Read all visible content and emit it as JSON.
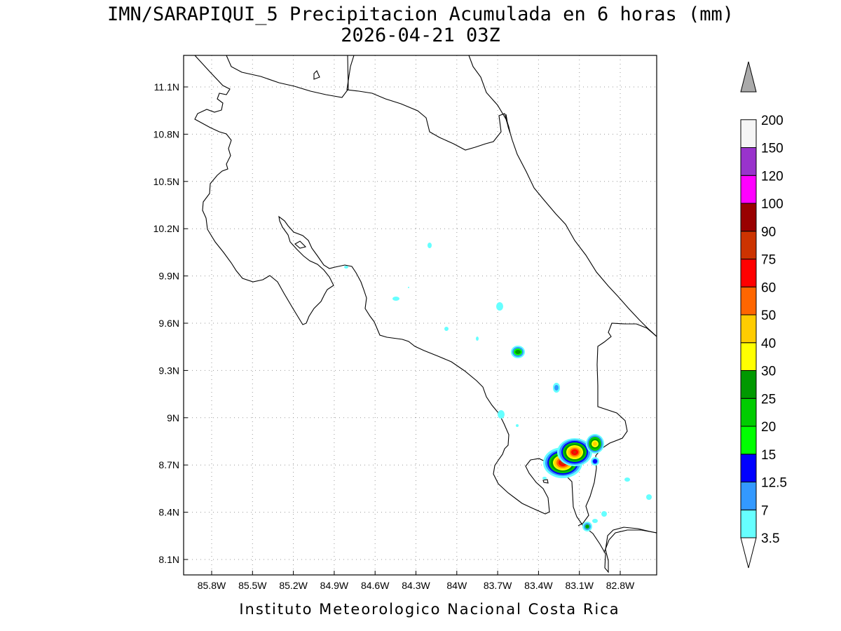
{
  "title": {
    "line1": "IMN/SARAPIQUI_5 Precipitacion Acumulada en 6 horas (mm)",
    "line2": "2026-04-21 03Z"
  },
  "map": {
    "lat_ticks": [
      "11.1N",
      "10.8N",
      "10.5N",
      "10.2N",
      "9.9N",
      "9.6N",
      "9.3N",
      "9N",
      "8.7N",
      "8.4N",
      "8.1N"
    ],
    "lon_ticks": [
      "85.8W",
      "85.5W",
      "85.2W",
      "84.9W",
      "84.6W",
      "84.3W",
      "84W",
      "83.7W",
      "83.4W",
      "83.1W",
      "82.8W"
    ],
    "grid": "dotted",
    "coastline_color": "#000000"
  },
  "colorbar": {
    "labels": [
      "3.5",
      "7",
      "12.5",
      "15",
      "20",
      "25",
      "30",
      "40",
      "50",
      "60",
      "75",
      "90",
      "100",
      "120",
      "150",
      "200"
    ],
    "colors": [
      "#66ffff",
      "#3399ff",
      "#0000ff",
      "#00ff00",
      "#00cc00",
      "#009900",
      "#ffff00",
      "#ffcc00",
      "#ff6600",
      "#ff0000",
      "#cc3300",
      "#990000",
      "#ff00ff",
      "#9933cc",
      "#f5f5f5",
      "#aaaaaa"
    ]
  },
  "footer": "Instituto Meteorologico Nacional Costa Rica"
}
